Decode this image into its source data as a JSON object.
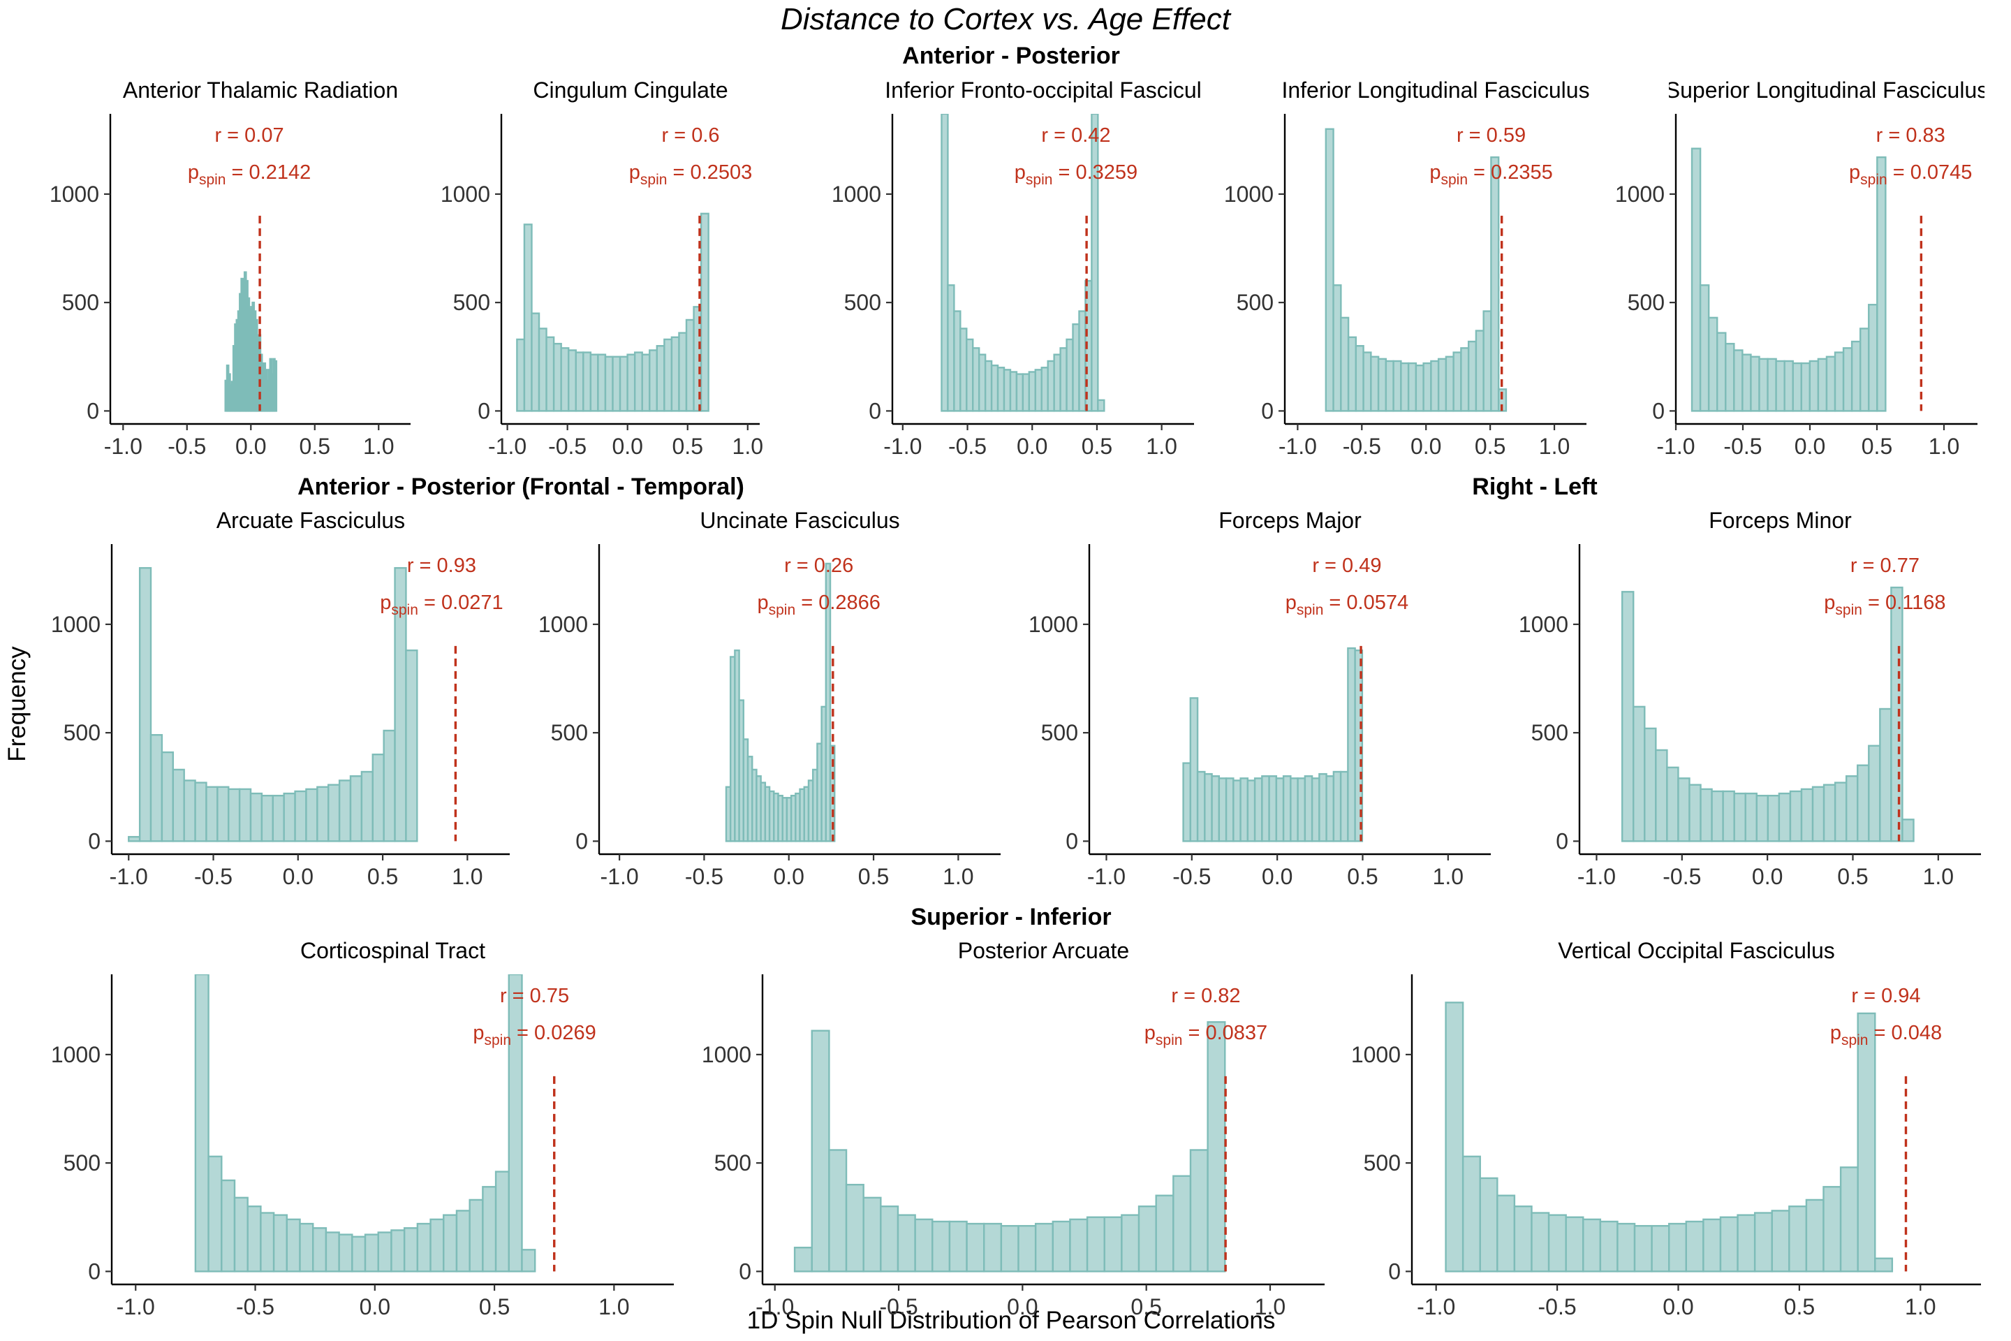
{
  "figure": {
    "title": "Distance to Cortex vs. Age Effect",
    "xlabel": "1D Spin Null Distribution of Pearson Correlations",
    "ylabel": "Frequency",
    "group_labels": [
      "Anterior - Posterior",
      "Anterior - Posterior (Frontal - Temporal)",
      "Right - Left",
      "Superior - Inferior"
    ]
  },
  "chart_data": [
    {
      "type": "bar",
      "title": "Anterior Thalamic Radiation",
      "group": "Anterior - Posterior",
      "r_label": "r = 0.07",
      "p_value": "0.2142",
      "r": 0.07,
      "xlim": [
        -1.1,
        1.25
      ],
      "ylim": [
        -60,
        1370
      ],
      "xticks": [
        "-1.0",
        "-0.5",
        "0.0",
        "0.5",
        "1.0"
      ],
      "yticks": [
        "0",
        "500",
        "1000"
      ],
      "bin_start": -0.2,
      "bin_width": 0.0125,
      "values": [
        140,
        210,
        170,
        120,
        135,
        300,
        400,
        420,
        460,
        540,
        610,
        560,
        640,
        600,
        520,
        470,
        480,
        500,
        460,
        420,
        300,
        350,
        260,
        210,
        220,
        190,
        140,
        190,
        240,
        170,
        240,
        230
      ]
    },
    {
      "type": "bar",
      "title": "Cingulum Cingulate",
      "group": "Anterior - Posterior",
      "r_label": "r = 0.6",
      "p_value": "0.2503",
      "r": 0.6,
      "xlim": [
        -1.05,
        1.1
      ],
      "ylim": [
        -60,
        1370
      ],
      "xticks": [
        "-1.0",
        "-0.5",
        "0.0",
        "0.5",
        "1.0"
      ],
      "yticks": [
        "0",
        "500",
        "1000"
      ],
      "bin_start": -0.92,
      "bin_width": 0.0613,
      "values": [
        330,
        860,
        450,
        380,
        340,
        310,
        290,
        280,
        270,
        270,
        260,
        260,
        250,
        250,
        250,
        260,
        270,
        260,
        280,
        300,
        330,
        340,
        360,
        420,
        480,
        910
      ]
    },
    {
      "type": "bar",
      "title": "Inferior Fronto-occipital Fascicul",
      "group": "Anterior - Posterior",
      "r_label": "r = 0.42",
      "p_value": "0.3259",
      "r": 0.42,
      "xlim": [
        -1.08,
        1.25
      ],
      "ylim": [
        -60,
        1370
      ],
      "xticks": [
        "-1.0",
        "-0.5",
        "0.0",
        "0.5",
        "1.0"
      ],
      "yticks": [
        "0",
        "500",
        "1000"
      ],
      "bin_start": -0.7,
      "bin_width": 0.0483,
      "values": [
        1370,
        580,
        460,
        380,
        330,
        290,
        260,
        230,
        210,
        200,
        190,
        180,
        170,
        170,
        180,
        190,
        200,
        230,
        260,
        290,
        330,
        400,
        460,
        600,
        1370,
        50
      ]
    },
    {
      "type": "bar",
      "title": "Inferior Longitudinal Fasciculus",
      "group": "Anterior - Posterior",
      "r_label": "r = 0.59",
      "p_value": "0.2355",
      "r": 0.59,
      "xlim": [
        -1.1,
        1.25
      ],
      "ylim": [
        -60,
        1370
      ],
      "xticks": [
        "-1.0",
        "-0.5",
        "0.0",
        "0.5",
        "1.0"
      ],
      "yticks": [
        "0",
        "500",
        "1000"
      ],
      "bin_start": -0.78,
      "bin_width": 0.0585,
      "values": [
        1300,
        580,
        430,
        340,
        300,
        270,
        250,
        240,
        230,
        230,
        220,
        220,
        210,
        220,
        230,
        240,
        250,
        270,
        290,
        320,
        370,
        460,
        1170,
        100
      ]
    },
    {
      "type": "bar",
      "title": "Superior Longitudinal Fasciculus",
      "group": "Anterior - Posterior",
      "r_label": "r = 0.83",
      "p_value": "0.0745",
      "r": 0.83,
      "xlim": [
        -1.0,
        1.25
      ],
      "ylim": [
        -60,
        1370
      ],
      "xticks": [
        "-1.0",
        "-0.5",
        "0.0",
        "0.5",
        "1.0"
      ],
      "yticks": [
        "0",
        "500",
        "1000"
      ],
      "bin_start": -0.88,
      "bin_width": 0.0628,
      "values": [
        1210,
        580,
        430,
        360,
        310,
        280,
        260,
        250,
        240,
        240,
        230,
        230,
        220,
        220,
        230,
        240,
        250,
        270,
        290,
        320,
        380,
        490,
        1170
      ]
    },
    {
      "type": "bar",
      "title": "Arcuate Fasciculus",
      "group": "Anterior - Posterior (Frontal - Temporal)",
      "r_label": "r = 0.93",
      "p_value": "0.0271",
      "r": 0.93,
      "xlim": [
        -1.1,
        1.25
      ],
      "ylim": [
        -60,
        1370
      ],
      "xticks": [
        "-1.0",
        "-0.5",
        "0.0",
        "0.5",
        "1.0"
      ],
      "yticks": [
        "0",
        "500",
        "1000"
      ],
      "bin_start": -1.0,
      "bin_width": 0.0655,
      "values": [
        20,
        1260,
        490,
        410,
        330,
        280,
        270,
        250,
        250,
        240,
        240,
        220,
        210,
        210,
        220,
        230,
        240,
        250,
        260,
        280,
        300,
        320,
        400,
        510,
        1260,
        880
      ]
    },
    {
      "type": "bar",
      "title": "Uncinate Fasciculus",
      "group": "Anterior - Posterior (Frontal - Temporal)",
      "r_label": "r = 0.26",
      "p_value": "0.2866",
      "r": 0.26,
      "xlim": [
        -1.12,
        1.25
      ],
      "ylim": [
        -60,
        1370
      ],
      "xticks": [
        "-1.0",
        "-0.5",
        "0.0",
        "0.5",
        "1.0"
      ],
      "yticks": [
        "0",
        "500",
        "1000"
      ],
      "bin_start": -0.37,
      "bin_width": 0.0256,
      "values": [
        250,
        850,
        880,
        650,
        470,
        390,
        330,
        300,
        270,
        250,
        230,
        220,
        210,
        200,
        200,
        210,
        220,
        240,
        250,
        280,
        330,
        450,
        620,
        1280,
        440
      ]
    },
    {
      "type": "bar",
      "title": "Forceps Major",
      "group": "Right - Left",
      "r_label": "r = 0.49",
      "p_value": "0.0574",
      "r": 0.49,
      "xlim": [
        -1.1,
        1.25
      ],
      "ylim": [
        -60,
        1370
      ],
      "xticks": [
        "-1.0",
        "-0.5",
        "0.0",
        "0.5",
        "1.0"
      ],
      "yticks": [
        "0",
        "500",
        "1000"
      ],
      "bin_start": -0.55,
      "bin_width": 0.0419,
      "values": [
        360,
        660,
        320,
        310,
        300,
        290,
        290,
        280,
        290,
        280,
        290,
        300,
        300,
        290,
        300,
        290,
        290,
        300,
        290,
        310,
        300,
        320,
        320,
        890,
        880
      ]
    },
    {
      "type": "bar",
      "title": "Forceps Minor",
      "group": "Right - Left",
      "r_label": "r = 0.77",
      "p_value": "0.1168",
      "r": 0.77,
      "xlim": [
        -1.1,
        1.25
      ],
      "ylim": [
        -60,
        1370
      ],
      "xticks": [
        "-1.0",
        "-0.5",
        "0.0",
        "0.5",
        "1.0"
      ],
      "yticks": [
        "0",
        "500",
        "1000"
      ],
      "bin_start": -0.85,
      "bin_width": 0.0656,
      "values": [
        1150,
        620,
        520,
        420,
        340,
        290,
        260,
        240,
        230,
        230,
        220,
        220,
        210,
        210,
        220,
        230,
        240,
        250,
        260,
        270,
        300,
        350,
        440,
        610,
        1170,
        100
      ]
    },
    {
      "type": "bar",
      "title": "Corticospinal Tract",
      "group": "Superior - Inferior",
      "r_label": "r = 0.75",
      "p_value": "0.0269",
      "r": 0.75,
      "xlim": [
        -1.1,
        1.25
      ],
      "ylim": [
        -60,
        1370
      ],
      "xticks": [
        "-1.0",
        "-0.5",
        "0.0",
        "0.5",
        "1.0"
      ],
      "yticks": [
        "0",
        "500",
        "1000"
      ],
      "bin_start": -0.75,
      "bin_width": 0.0546,
      "values": [
        1370,
        530,
        420,
        340,
        300,
        270,
        260,
        240,
        220,
        200,
        180,
        170,
        160,
        170,
        180,
        190,
        200,
        220,
        240,
        260,
        280,
        330,
        390,
        460,
        1370,
        100
      ]
    },
    {
      "type": "bar",
      "title": "Posterior Arcuate",
      "group": "Superior - Inferior",
      "r_label": "r = 0.82",
      "p_value": "0.0837",
      "r": 0.82,
      "xlim": [
        -1.05,
        1.22
      ],
      "ylim": [
        -60,
        1370
      ],
      "xticks": [
        "-1.0",
        "-0.5",
        "0.0",
        "0.5",
        "1.0"
      ],
      "yticks": [
        "0",
        "500",
        "1000"
      ],
      "bin_start": -0.92,
      "bin_width": 0.0695,
      "values": [
        110,
        1110,
        560,
        400,
        340,
        300,
        260,
        240,
        230,
        230,
        220,
        220,
        210,
        210,
        220,
        230,
        240,
        250,
        250,
        260,
        300,
        350,
        440,
        560,
        1150
      ]
    },
    {
      "type": "bar",
      "title": "Vertical Occipital Fasciculus",
      "group": "Superior - Inferior",
      "r_label": "r = 0.94",
      "p_value": "0.048",
      "r": 0.94,
      "xlim": [
        -1.1,
        1.25
      ],
      "ylim": [
        -60,
        1370
      ],
      "xticks": [
        "-1.0",
        "-0.5",
        "0.0",
        "0.5",
        "1.0"
      ],
      "yticks": [
        "0",
        "500",
        "1000"
      ],
      "bin_start": -0.96,
      "bin_width": 0.0709,
      "values": [
        1240,
        530,
        430,
        350,
        300,
        270,
        260,
        250,
        240,
        230,
        220,
        210,
        210,
        220,
        230,
        240,
        250,
        260,
        270,
        280,
        300,
        330,
        390,
        480,
        1190,
        60
      ]
    }
  ]
}
